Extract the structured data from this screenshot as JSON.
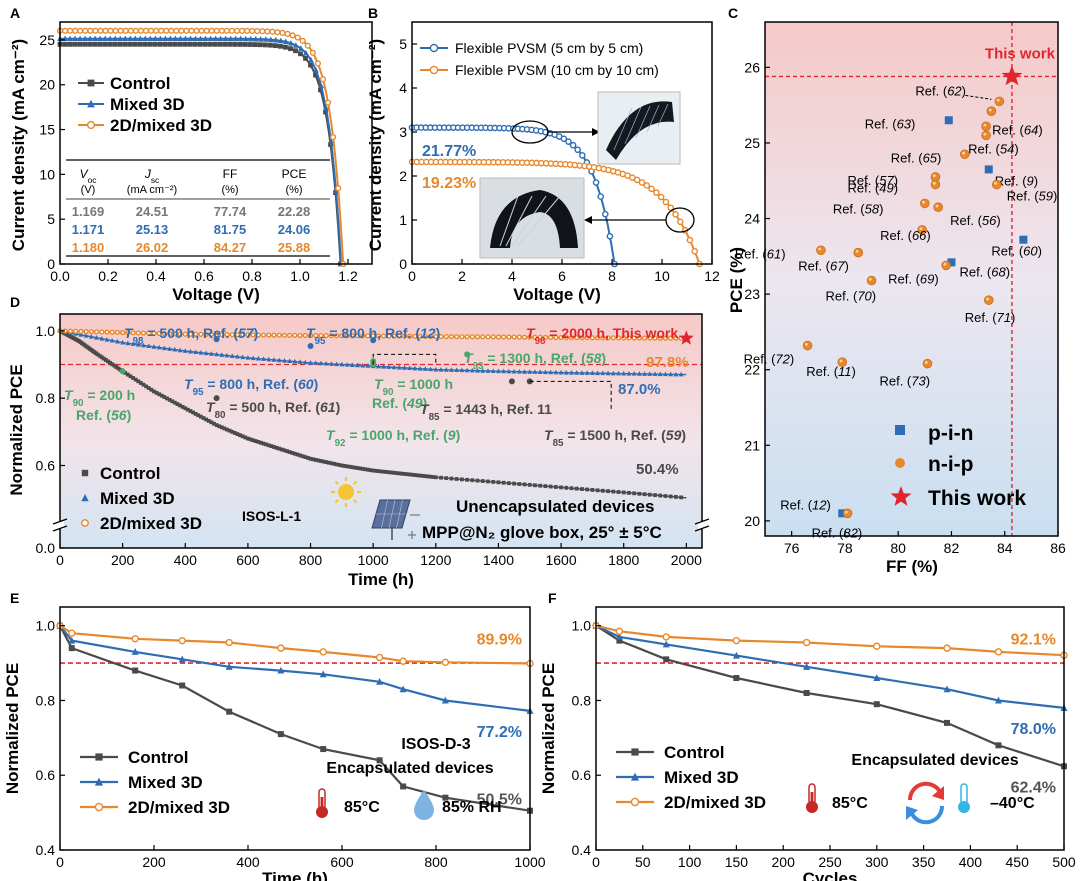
{
  "chart_data": [
    {
      "panel": "A",
      "type": "line",
      "xlabel": "Voltage (V)",
      "ylabel": "Current density (mA cm⁻²)",
      "xlim": [
        0,
        1.3
      ],
      "ylim": [
        0,
        27
      ],
      "xticks": [
        0.0,
        0.2,
        0.4,
        0.6,
        0.8,
        1.0,
        1.2
      ],
      "yticks": [
        0,
        5,
        10,
        15,
        20,
        25
      ],
      "series": [
        {
          "name": "Control",
          "color": "#4a4a4a",
          "marker": "square",
          "voc": 1.169,
          "jsc": 24.51
        },
        {
          "name": "Mixed 3D",
          "color": "#2e6db4",
          "marker": "triangle",
          "voc": 1.171,
          "jsc": 25.13
        },
        {
          "name": "2D/mixed 3D",
          "color": "#e8882c",
          "marker": "circle",
          "voc": 1.18,
          "jsc": 26.02
        }
      ],
      "table": {
        "headers": [
          [
            "V",
            "oc",
            "(V)"
          ],
          [
            "J",
            "sc",
            "(mA cm⁻²)"
          ],
          [
            "FF",
            "",
            "(%)"
          ],
          [
            "PCE",
            "",
            "(%)"
          ]
        ],
        "rows": [
          {
            "values": [
              "1.169",
              "24.51",
              "77.74",
              "22.28"
            ],
            "color": "#777777"
          },
          {
            "values": [
              "1.171",
              "25.13",
              "81.75",
              "24.06"
            ],
            "color": "#2e6db4"
          },
          {
            "values": [
              "1.180",
              "26.02",
              "84.27",
              "25.88"
            ],
            "color": "#e8882c"
          }
        ]
      }
    },
    {
      "panel": "B",
      "type": "line",
      "xlabel": "Voltage (V)",
      "ylabel": "Current density (mA cm⁻²)",
      "xlim": [
        0,
        12
      ],
      "ylim": [
        0,
        5.5
      ],
      "xticks": [
        0,
        2,
        4,
        6,
        8,
        10,
        12
      ],
      "yticks": [
        0,
        1,
        2,
        3,
        4,
        5
      ],
      "series": [
        {
          "name": "Flexible PVSM (5 cm by 5 cm)",
          "color": "#2e6db4",
          "voc": 8.1,
          "jsc": 3.1,
          "pce": "21.77%"
        },
        {
          "name": "Flexible PVSM (10 cm by 10 cm)",
          "color": "#e8882c",
          "voc": 11.5,
          "jsc": 2.32,
          "pce": "19.23%"
        }
      ]
    },
    {
      "panel": "C",
      "type": "scatter",
      "xlabel": "FF (%)",
      "ylabel": "PCE (%)",
      "xlim": [
        75,
        86
      ],
      "ylim": [
        19.8,
        26.6
      ],
      "xticks": [
        76,
        78,
        80,
        82,
        84,
        86
      ],
      "yticks": [
        20,
        21,
        22,
        23,
        24,
        25,
        26
      ],
      "this_work": {
        "x": 84.27,
        "y": 25.88,
        "label": "This work"
      },
      "legend": [
        "p-i-n",
        "n-i-p",
        "This work"
      ],
      "points": [
        {
          "x": 83.8,
          "y": 25.55,
          "kind": "nip",
          "label": "Ref. (",
          "num": "62",
          "end": ")"
        },
        {
          "x": 83.5,
          "y": 25.42,
          "kind": "nip",
          "label": "",
          "num": "",
          "end": ""
        },
        {
          "x": 81.9,
          "y": 25.3,
          "kind": "pin",
          "label": "Ref. (",
          "num": "63",
          "end": ")"
        },
        {
          "x": 83.3,
          "y": 25.22,
          "kind": "nip",
          "label": "Ref. (",
          "num": "64",
          "end": ")"
        },
        {
          "x": 83.3,
          "y": 25.1,
          "kind": "nip",
          "label": "Ref. (",
          "num": "54",
          "end": ")"
        },
        {
          "x": 82.5,
          "y": 24.85,
          "kind": "nip",
          "label": "Ref. (",
          "num": "65",
          "end": ")"
        },
        {
          "x": 83.4,
          "y": 24.65,
          "kind": "pin",
          "label": "Ref. (",
          "num": "9",
          "end": ")"
        },
        {
          "x": 81.4,
          "y": 24.55,
          "kind": "nip",
          "label": "Ref. (",
          "num": "57",
          "end": ")"
        },
        {
          "x": 81.4,
          "y": 24.45,
          "kind": "nip",
          "label": "Ref. (",
          "num": "49",
          "end": ")"
        },
        {
          "x": 83.7,
          "y": 24.45,
          "kind": "nip",
          "label": "Ref. (",
          "num": "59",
          "end": ")"
        },
        {
          "x": 81.0,
          "y": 24.2,
          "kind": "nip",
          "label": "Ref. (",
          "num": "58",
          "end": ")"
        },
        {
          "x": 81.5,
          "y": 24.15,
          "kind": "nip",
          "label": "Ref. (",
          "num": "56",
          "end": ")"
        },
        {
          "x": 84.7,
          "y": 23.72,
          "kind": "pin",
          "label": "Ref. (",
          "num": "60",
          "end": ")"
        },
        {
          "x": 80.9,
          "y": 23.85,
          "kind": "nip",
          "label": "Ref. (",
          "num": "66",
          "end": ")"
        },
        {
          "x": 77.1,
          "y": 23.58,
          "kind": "nip",
          "label": "Ref. (",
          "num": "61",
          "end": ")"
        },
        {
          "x": 78.5,
          "y": 23.55,
          "kind": "nip",
          "label": "Ref. (",
          "num": "67",
          "end": ")"
        },
        {
          "x": 82.0,
          "y": 23.42,
          "kind": "pin",
          "label": "Ref. (",
          "num": "68",
          "end": ")"
        },
        {
          "x": 81.8,
          "y": 23.38,
          "kind": "nip",
          "label": "Ref. (",
          "num": "69",
          "end": ")"
        },
        {
          "x": 79.0,
          "y": 23.18,
          "kind": "nip",
          "label": "Ref. (",
          "num": "70",
          "end": ")"
        },
        {
          "x": 83.4,
          "y": 22.92,
          "kind": "nip",
          "label": "Ref. (",
          "num": "71",
          "end": ")"
        },
        {
          "x": 76.6,
          "y": 22.32,
          "kind": "nip",
          "label": "Ref. (",
          "num": "72",
          "end": ")"
        },
        {
          "x": 77.9,
          "y": 22.1,
          "kind": "nip",
          "label": "Ref. (",
          "num": "11",
          "end": ")"
        },
        {
          "x": 81.1,
          "y": 22.08,
          "kind": "nip",
          "label": "Ref. (",
          "num": "73",
          "end": ")"
        },
        {
          "x": 77.9,
          "y": 20.1,
          "kind": "pin",
          "label": "Ref. (",
          "num": "12",
          "end": ")"
        },
        {
          "x": 78.1,
          "y": 20.1,
          "kind": "nip",
          "label": "Ref. (",
          "num": "82",
          "end": ")"
        }
      ]
    },
    {
      "panel": "D",
      "type": "line",
      "xlabel": "Time (h)",
      "ylabel": "Normalized PCE",
      "xlim": [
        0,
        2050
      ],
      "xticks": [
        0,
        200,
        400,
        600,
        800,
        1000,
        1200,
        1400,
        1600,
        1800,
        2000
      ],
      "yticks": [
        0.0,
        0.6,
        0.8,
        1.0
      ],
      "legend": [
        "Control",
        "Mixed 3D",
        "2D/mixed 3D"
      ],
      "end_labels": {
        "control": "50.4%",
        "mixed": "87.0%",
        "twod": "97.8%"
      },
      "protocol": "ISOS-L-1",
      "conditions": [
        "Unencapsulated devices",
        "MPP@N₂ glove box, 25° ± 5°C"
      ],
      "annotations": [
        {
          "pre": "T",
          "sub": "98",
          "text": " = 500 h, Ref. (",
          "num": "57",
          "end": ")",
          "color": "#2e6db4"
        },
        {
          "pre": "T",
          "sub": "95",
          "text": " = 800 h, Ref. (",
          "num": "12",
          "end": ")",
          "color": "#2e6db4"
        },
        {
          "pre": "T",
          "sub": "98",
          "text": " = 2000 h, This work",
          "num": "",
          "end": "",
          "color": "#e0262c"
        },
        {
          "pre": "T",
          "sub": "93",
          "text": " = 1300 h, Ref. (",
          "num": "58",
          "end": ")",
          "color": "#4aa56a"
        },
        {
          "pre": "T",
          "sub": "95",
          "text": " = 800 h, Ref. (",
          "num": "60",
          "end": ")",
          "color": "#2e6db4"
        },
        {
          "pre": "T",
          "sub": "90",
          "text": " = 1000 h",
          "num": "",
          "end": "",
          "color": "#4aa56a"
        },
        {
          "pre": "",
          "sub": "",
          "text": "Ref. (",
          "num": "49",
          "end": ")",
          "color": "#4aa56a"
        },
        {
          "pre": "T",
          "sub": "90",
          "text": " = 200 h",
          "num": "",
          "end": "",
          "color": "#4aa56a"
        },
        {
          "pre": "",
          "sub": "",
          "text": "Ref. (",
          "num": "56",
          "end": ")",
          "color": "#4aa56a"
        },
        {
          "pre": "T",
          "sub": "80",
          "text": " = 500 h, Ref. (",
          "num": "61",
          "end": ")",
          "color": "#4a4a4a"
        },
        {
          "pre": "T",
          "sub": "85",
          "text": " = 1443 h, Ref. 11",
          "num": "",
          "end": "",
          "color": "#4a4a4a"
        },
        {
          "pre": "T",
          "sub": "92",
          "text": " = 1000 h, Ref. (",
          "num": "9",
          "end": ")",
          "color": "#4aa56a"
        },
        {
          "pre": "T",
          "sub": "85",
          "text": " = 1500 h, Ref. (",
          "num": "59",
          "end": ")",
          "color": "#4a4a4a"
        }
      ],
      "series": [
        {
          "name": "Control",
          "x": [
            0,
            60,
            120,
            200,
            300,
            400,
            500,
            600,
            700,
            800,
            900,
            1000,
            1100,
            1200,
            1400,
            1600,
            1800,
            2000
          ],
          "y": [
            1.0,
            0.97,
            0.93,
            0.88,
            0.82,
            0.77,
            0.72,
            0.68,
            0.65,
            0.62,
            0.6,
            0.585,
            0.575,
            0.565,
            0.55,
            0.535,
            0.52,
            0.504
          ]
        },
        {
          "name": "Mixed 3D",
          "x": [
            0,
            200,
            400,
            600,
            800,
            1000,
            1200,
            1400,
            1600,
            1800,
            2000
          ],
          "y": [
            1.0,
            0.965,
            0.94,
            0.92,
            0.905,
            0.895,
            0.885,
            0.88,
            0.876,
            0.873,
            0.87
          ]
        },
        {
          "name": "2D/mixed 3D",
          "x": [
            0,
            200,
            400,
            600,
            800,
            1000,
            1200,
            1400,
            1600,
            1800,
            2000
          ],
          "y": [
            1.0,
            0.995,
            0.99,
            0.988,
            0.986,
            0.985,
            0.983,
            0.982,
            0.98,
            0.979,
            0.978
          ]
        }
      ]
    },
    {
      "panel": "E",
      "type": "line",
      "xlabel": "Time (h)",
      "ylabel": "Normalized PCE",
      "xlim": [
        0,
        1000
      ],
      "ylim": [
        0.4,
        1.05
      ],
      "xticks": [
        0,
        200,
        400,
        600,
        800,
        1000
      ],
      "yticks": [
        0.4,
        0.6,
        0.8,
        1.0
      ],
      "reference_line": 0.9,
      "end_labels": {
        "control": "50.5%",
        "mixed": "77.2%",
        "twod": "89.9%"
      },
      "protocol": "ISOS-D-3",
      "condition": "Encapsulated devices",
      "stress": [
        "85°C",
        "85% RH"
      ],
      "legend": [
        "Control",
        "Mixed 3D",
        "2D/mixed 3D"
      ],
      "series": [
        {
          "name": "Control",
          "x": [
            0,
            25,
            160,
            260,
            360,
            470,
            560,
            680,
            730,
            820,
            1000
          ],
          "y": [
            1.0,
            0.94,
            0.88,
            0.84,
            0.77,
            0.71,
            0.67,
            0.64,
            0.57,
            0.54,
            0.505
          ]
        },
        {
          "name": "Mixed 3D",
          "x": [
            0,
            25,
            160,
            260,
            360,
            470,
            560,
            680,
            730,
            820,
            1000
          ],
          "y": [
            1.0,
            0.96,
            0.93,
            0.91,
            0.89,
            0.88,
            0.87,
            0.85,
            0.83,
            0.8,
            0.772
          ]
        },
        {
          "name": "2D/mixed 3D",
          "x": [
            0,
            25,
            160,
            260,
            360,
            470,
            560,
            680,
            730,
            820,
            1000
          ],
          "y": [
            1.0,
            0.98,
            0.965,
            0.96,
            0.955,
            0.94,
            0.93,
            0.915,
            0.905,
            0.902,
            0.899
          ]
        }
      ]
    },
    {
      "panel": "F",
      "type": "line",
      "xlabel": "Cycles",
      "ylabel": "Normalized PCE",
      "xlim": [
        0,
        500
      ],
      "ylim": [
        0.4,
        1.05
      ],
      "xticks": [
        0,
        50,
        100,
        150,
        200,
        250,
        300,
        350,
        400,
        450,
        500
      ],
      "yticks": [
        0.4,
        0.6,
        0.8,
        1.0
      ],
      "reference_line": 0.9,
      "end_labels": {
        "control": "62.4%",
        "mixed": "78.0%",
        "twod": "92.1%"
      },
      "condition": "Encapsulated devices",
      "stress": [
        "85°C",
        "–40°C"
      ],
      "legend": [
        "Control",
        "Mixed 3D",
        "2D/mixed 3D"
      ],
      "series": [
        {
          "name": "Control",
          "x": [
            0,
            25,
            75,
            150,
            225,
            300,
            375,
            430,
            500
          ],
          "y": [
            1.0,
            0.96,
            0.91,
            0.86,
            0.82,
            0.79,
            0.74,
            0.68,
            0.624
          ]
        },
        {
          "name": "Mixed 3D",
          "x": [
            0,
            25,
            75,
            150,
            225,
            300,
            375,
            430,
            500
          ],
          "y": [
            1.0,
            0.97,
            0.95,
            0.92,
            0.89,
            0.86,
            0.83,
            0.8,
            0.78
          ]
        },
        {
          "name": "2D/mixed 3D",
          "x": [
            0,
            25,
            75,
            150,
            225,
            300,
            375,
            430,
            500
          ],
          "y": [
            1.0,
            0.985,
            0.97,
            0.96,
            0.955,
            0.945,
            0.94,
            0.93,
            0.921
          ]
        }
      ]
    }
  ],
  "panel_letters": [
    "A",
    "B",
    "C",
    "D",
    "E",
    "F"
  ],
  "colors": {
    "control": "#4a4a4a",
    "mixed": "#2e6db4",
    "twod": "#e8882c",
    "red": "#e0262c",
    "green": "#4aa56a"
  }
}
